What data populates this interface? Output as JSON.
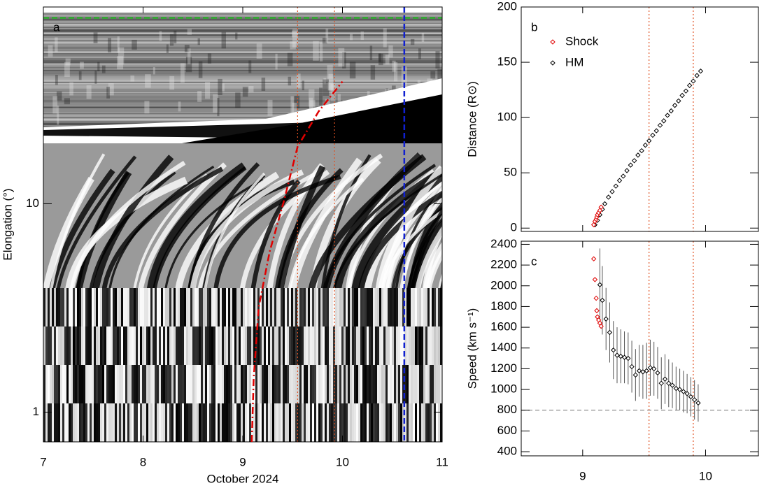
{
  "chart_data": [
    {
      "type": "image",
      "panel_label": "a",
      "xlabel": "October 2024",
      "ylabel": "Elongation (°)",
      "xlim": [
        7,
        11
      ],
      "xticks": [
        7,
        8,
        9,
        10,
        11
      ],
      "ylim": [
        0.72,
        88
      ],
      "yticks": [
        1,
        10
      ],
      "log_y": true,
      "series": [
        {
          "color": "#e00000",
          "x": [
            9.09,
            9.11,
            9.16,
            9.27,
            9.41,
            9.55,
            9.76,
            10.0
          ],
          "values": [
            0.72,
            1.47,
            3.19,
            5.9,
            10.2,
            18.8,
            27.7,
            38.6
          ]
        }
      ],
      "vlines": [
        {
          "value": 9.55,
          "color": "#e05020"
        },
        {
          "value": 9.92,
          "color": "#e05020"
        },
        {
          "value": 10.62,
          "color": "#1020d0"
        }
      ],
      "hlines": [
        {
          "value": 78,
          "color": "#20c020"
        }
      ]
    },
    {
      "type": "scatter",
      "panel_label": "b",
      "ylabel": "Distance (R⊙)",
      "xlim": [
        8.5,
        10.43
      ],
      "xticks": [
        9,
        10
      ],
      "xtick_labels": false,
      "ylim": [
        -3,
        200
      ],
      "yticks": [
        0,
        50,
        100,
        150,
        200
      ],
      "legend": "upper left",
      "series": [
        {
          "name": "Shock",
          "color": "#e00000",
          "x": [
            9.09,
            9.1,
            9.11,
            9.115,
            9.12,
            9.13,
            9.14,
            9.15
          ],
          "values": [
            3,
            6,
            8,
            10,
            12,
            14,
            16,
            19
          ]
        },
        {
          "name": "HM",
          "color": "#000000",
          "x": [
            9.1,
            9.12,
            9.14,
            9.16,
            9.18,
            9.21,
            9.24,
            9.27,
            9.3,
            9.33,
            9.36,
            9.39,
            9.42,
            9.45,
            9.48,
            9.51,
            9.54,
            9.57,
            9.6,
            9.63,
            9.66,
            9.69,
            9.72,
            9.75,
            9.78,
            9.81,
            9.84,
            9.87,
            9.9,
            9.93,
            9.96
          ],
          "values": [
            3,
            7,
            12,
            17,
            22,
            28,
            33,
            38,
            43,
            47,
            52,
            57,
            61,
            66,
            70,
            75,
            79,
            84,
            88,
            93,
            97,
            102,
            106,
            111,
            115,
            120,
            124,
            129,
            133,
            138,
            142
          ]
        }
      ],
      "vlines": [
        {
          "value": 9.54,
          "color": "#e05020"
        },
        {
          "value": 9.9,
          "color": "#e05020"
        }
      ]
    },
    {
      "type": "scatter",
      "panel_label": "c",
      "xlabel": "October 2024",
      "ylabel": "Speed (km s⁻¹)",
      "xlim": [
        8.5,
        10.43
      ],
      "xticks": [
        9,
        10
      ],
      "ylim": [
        360,
        2430
      ],
      "yticks": [
        400,
        600,
        800,
        1000,
        1200,
        1400,
        1600,
        1800,
        2000,
        2200,
        2400
      ],
      "series": [
        {
          "name": "Shock",
          "color": "#e00000",
          "x": [
            9.09,
            9.1,
            9.11,
            9.115,
            9.12,
            9.13,
            9.14,
            9.15
          ],
          "values": [
            2260,
            2060,
            1880,
            1760,
            1700,
            1670,
            1640,
            1610
          ]
        },
        {
          "name": "HM",
          "color": "#000000",
          "x": [
            9.14,
            9.16,
            9.19,
            9.22,
            9.25,
            9.28,
            9.31,
            9.34,
            9.37,
            9.4,
            9.43,
            9.46,
            9.49,
            9.52,
            9.55,
            9.58,
            9.61,
            9.64,
            9.67,
            9.7,
            9.73,
            9.76,
            9.79,
            9.82,
            9.85,
            9.88,
            9.91,
            9.94
          ],
          "values": [
            2010,
            1860,
            1680,
            1550,
            1380,
            1330,
            1320,
            1310,
            1300,
            1220,
            1140,
            1180,
            1170,
            1180,
            1210,
            1200,
            1160,
            1060,
            1100,
            1060,
            1040,
            1010,
            1000,
            980,
            960,
            930,
            900,
            870
          ],
          "errors": [
            350,
            330,
            300,
            290,
            280,
            270,
            260,
            250,
            250,
            250,
            250,
            250,
            260,
            270,
            270,
            260,
            250,
            250,
            240,
            230,
            220,
            210,
            200,
            200,
            190,
            190,
            190,
            180
          ]
        }
      ],
      "vlines": [
        {
          "value": 9.54,
          "color": "#e05020"
        },
        {
          "value": 9.9,
          "color": "#e05020"
        }
      ],
      "hlines": [
        {
          "value": 800,
          "color": "#777777"
        }
      ]
    }
  ]
}
